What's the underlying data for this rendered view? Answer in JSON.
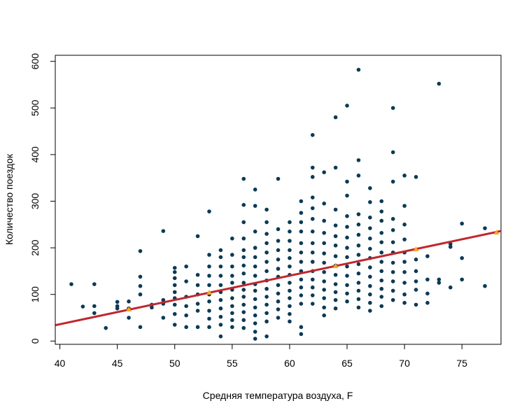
{
  "chart_data": {
    "type": "scatter",
    "title": "",
    "xlabel": "Средняя температура воздуха, F",
    "ylabel": "Количество поездок",
    "xlim": [
      39.6,
      78.4
    ],
    "ylim": [
      -7,
      613
    ],
    "xticks": [
      40,
      45,
      50,
      55,
      60,
      65,
      70,
      75
    ],
    "yticks": [
      0,
      100,
      200,
      300,
      400,
      500,
      600
    ],
    "grid": false,
    "legend": "none",
    "colors": {
      "points": "#0b3a55",
      "fit_line": "#c0272d",
      "markers": "#f5a623"
    },
    "series": [
      {
        "type": "scatter",
        "points": [
          [
            41,
            122
          ],
          [
            42,
            74
          ],
          [
            43,
            122
          ],
          [
            43,
            75
          ],
          [
            43,
            60
          ],
          [
            44,
            28
          ],
          [
            45,
            84
          ],
          [
            45,
            75
          ],
          [
            45,
            70
          ],
          [
            46,
            85
          ],
          [
            46,
            70
          ],
          [
            46,
            50
          ],
          [
            47,
            193
          ],
          [
            47,
            138
          ],
          [
            47,
            118
          ],
          [
            47,
            100
          ],
          [
            47,
            30
          ],
          [
            48,
            78
          ],
          [
            48,
            72
          ],
          [
            49,
            236
          ],
          [
            49,
            88
          ],
          [
            49,
            80
          ],
          [
            49,
            50
          ],
          [
            50,
            157
          ],
          [
            50,
            148
          ],
          [
            50,
            135
          ],
          [
            50,
            120
          ],
          [
            50,
            105
          ],
          [
            50,
            92
          ],
          [
            50,
            78
          ],
          [
            50,
            58
          ],
          [
            50,
            35
          ],
          [
            51,
            160
          ],
          [
            51,
            128
          ],
          [
            51,
            95
          ],
          [
            51,
            75
          ],
          [
            51,
            55
          ],
          [
            51,
            30
          ],
          [
            52,
            225
          ],
          [
            52,
            142
          ],
          [
            52,
            120
          ],
          [
            52,
            100
          ],
          [
            52,
            80
          ],
          [
            52,
            65
          ],
          [
            52,
            30
          ],
          [
            53,
            278
          ],
          [
            53,
            185
          ],
          [
            53,
            160
          ],
          [
            53,
            140
          ],
          [
            53,
            120
          ],
          [
            53,
            100
          ],
          [
            53,
            85
          ],
          [
            53,
            65
          ],
          [
            53,
            48
          ],
          [
            53,
            30
          ],
          [
            54,
            195
          ],
          [
            54,
            180
          ],
          [
            54,
            160
          ],
          [
            54,
            140
          ],
          [
            54,
            120
          ],
          [
            54,
            105
          ],
          [
            54,
            88
          ],
          [
            54,
            70
          ],
          [
            54,
            52
          ],
          [
            54,
            35
          ],
          [
            54,
            10
          ],
          [
            55,
            220
          ],
          [
            55,
            185
          ],
          [
            55,
            160
          ],
          [
            55,
            140
          ],
          [
            55,
            125
          ],
          [
            55,
            110
          ],
          [
            55,
            92
          ],
          [
            55,
            75
          ],
          [
            55,
            60
          ],
          [
            55,
            45
          ],
          [
            55,
            30
          ],
          [
            56,
            348
          ],
          [
            56,
            292
          ],
          [
            56,
            255
          ],
          [
            56,
            220
          ],
          [
            56,
            195
          ],
          [
            56,
            180
          ],
          [
            56,
            162
          ],
          [
            56,
            145
          ],
          [
            56,
            125
          ],
          [
            56,
            110
          ],
          [
            56,
            95
          ],
          [
            56,
            78
          ],
          [
            56,
            62
          ],
          [
            56,
            45
          ],
          [
            56,
            28
          ],
          [
            57,
            325
          ],
          [
            57,
            290
          ],
          [
            57,
            235
          ],
          [
            57,
            200
          ],
          [
            57,
            180
          ],
          [
            57,
            160
          ],
          [
            57,
            140
          ],
          [
            57,
            122
          ],
          [
            57,
            108
          ],
          [
            57,
            90
          ],
          [
            57,
            72
          ],
          [
            57,
            55
          ],
          [
            57,
            38
          ],
          [
            57,
            20
          ],
          [
            57,
            5
          ],
          [
            58,
            282
          ],
          [
            58,
            255
          ],
          [
            58,
            230
          ],
          [
            58,
            210
          ],
          [
            58,
            190
          ],
          [
            58,
            170
          ],
          [
            58,
            150
          ],
          [
            58,
            130
          ],
          [
            58,
            112
          ],
          [
            58,
            95
          ],
          [
            58,
            78
          ],
          [
            58,
            60
          ],
          [
            58,
            42
          ],
          [
            58,
            10
          ],
          [
            59,
            348
          ],
          [
            59,
            240
          ],
          [
            59,
            215
          ],
          [
            59,
            195
          ],
          [
            59,
            175
          ],
          [
            59,
            155
          ],
          [
            59,
            138
          ],
          [
            59,
            120
          ],
          [
            59,
            102
          ],
          [
            59,
            85
          ],
          [
            59,
            68
          ],
          [
            59,
            50
          ],
          [
            60,
            255
          ],
          [
            60,
            235
          ],
          [
            60,
            215
          ],
          [
            60,
            195
          ],
          [
            60,
            178
          ],
          [
            60,
            160
          ],
          [
            60,
            142
          ],
          [
            60,
            125
          ],
          [
            60,
            108
          ],
          [
            60,
            92
          ],
          [
            60,
            75
          ],
          [
            60,
            58
          ],
          [
            60,
            42
          ],
          [
            61,
            300
          ],
          [
            61,
            275
          ],
          [
            61,
            255
          ],
          [
            61,
            235
          ],
          [
            61,
            210
          ],
          [
            61,
            190
          ],
          [
            61,
            170
          ],
          [
            61,
            150
          ],
          [
            61,
            132
          ],
          [
            61,
            115
          ],
          [
            61,
            98
          ],
          [
            61,
            80
          ],
          [
            61,
            30
          ],
          [
            61,
            15
          ],
          [
            62,
            442
          ],
          [
            62,
            372
          ],
          [
            62,
            352
          ],
          [
            62,
            308
          ],
          [
            62,
            285
          ],
          [
            62,
            262
          ],
          [
            62,
            235
          ],
          [
            62,
            210
          ],
          [
            62,
            190
          ],
          [
            62,
            170
          ],
          [
            62,
            150
          ],
          [
            62,
            132
          ],
          [
            62,
            115
          ],
          [
            62,
            98
          ],
          [
            62,
            80
          ],
          [
            63,
            362
          ],
          [
            63,
            295
          ],
          [
            63,
            258
          ],
          [
            63,
            232
          ],
          [
            63,
            210
          ],
          [
            63,
            188
          ],
          [
            63,
            168
          ],
          [
            63,
            148
          ],
          [
            63,
            128
          ],
          [
            63,
            110
          ],
          [
            63,
            92
          ],
          [
            63,
            72
          ],
          [
            63,
            55
          ],
          [
            64,
            480
          ],
          [
            64,
            372
          ],
          [
            64,
            282
          ],
          [
            64,
            248
          ],
          [
            64,
            225
          ],
          [
            64,
            205
          ],
          [
            64,
            182
          ],
          [
            64,
            162
          ],
          [
            64,
            142
          ],
          [
            64,
            122
          ],
          [
            64,
            105
          ],
          [
            64,
            88
          ],
          [
            64,
            70
          ],
          [
            65,
            505
          ],
          [
            65,
            342
          ],
          [
            65,
            312
          ],
          [
            65,
            268
          ],
          [
            65,
            245
          ],
          [
            65,
            222
          ],
          [
            65,
            200
          ],
          [
            65,
            180
          ],
          [
            65,
            160
          ],
          [
            65,
            140
          ],
          [
            65,
            120
          ],
          [
            65,
            102
          ],
          [
            65,
            85
          ],
          [
            66,
            582
          ],
          [
            66,
            388
          ],
          [
            66,
            355
          ],
          [
            66,
            272
          ],
          [
            66,
            250
          ],
          [
            66,
            228
          ],
          [
            66,
            205
          ],
          [
            66,
            185
          ],
          [
            66,
            165
          ],
          [
            66,
            145
          ],
          [
            66,
            125
          ],
          [
            66,
            108
          ],
          [
            66,
            90
          ],
          [
            66,
            72
          ],
          [
            67,
            328
          ],
          [
            67,
            298
          ],
          [
            67,
            265
          ],
          [
            67,
            242
          ],
          [
            67,
            220
          ],
          [
            67,
            198
          ],
          [
            67,
            178
          ],
          [
            67,
            158
          ],
          [
            67,
            138
          ],
          [
            67,
            118
          ],
          [
            67,
            100
          ],
          [
            67,
            82
          ],
          [
            67,
            65
          ],
          [
            68,
            300
          ],
          [
            68,
            278
          ],
          [
            68,
            258
          ],
          [
            68,
            232
          ],
          [
            68,
            212
          ],
          [
            68,
            190
          ],
          [
            68,
            170
          ],
          [
            68,
            150
          ],
          [
            68,
            130
          ],
          [
            68,
            112
          ],
          [
            68,
            95
          ],
          [
            68,
            75
          ],
          [
            69,
            500
          ],
          [
            69,
            405
          ],
          [
            69,
            342
          ],
          [
            69,
            262
          ],
          [
            69,
            238
          ],
          [
            69,
            212
          ],
          [
            69,
            190
          ],
          [
            69,
            168
          ],
          [
            69,
            148
          ],
          [
            69,
            128
          ],
          [
            69,
            108
          ],
          [
            69,
            88
          ],
          [
            70,
            355
          ],
          [
            70,
            290
          ],
          [
            70,
            250
          ],
          [
            70,
            218
          ],
          [
            70,
            190
          ],
          [
            70,
            170
          ],
          [
            70,
            148
          ],
          [
            70,
            125
          ],
          [
            70,
            100
          ],
          [
            70,
            82
          ],
          [
            71,
            352
          ],
          [
            71,
            175
          ],
          [
            71,
            150
          ],
          [
            71,
            128
          ],
          [
            71,
            110
          ],
          [
            71,
            78
          ],
          [
            72,
            182
          ],
          [
            72,
            132
          ],
          [
            72,
            102
          ],
          [
            72,
            82
          ],
          [
            73,
            552
          ],
          [
            73,
            132
          ],
          [
            73,
            125
          ],
          [
            74,
            208
          ],
          [
            74,
            202
          ],
          [
            74,
            115
          ],
          [
            75,
            252
          ],
          [
            75,
            178
          ],
          [
            75,
            132
          ],
          [
            77,
            242
          ],
          [
            77,
            118
          ]
        ]
      },
      {
        "type": "line",
        "x": [
          39.6,
          78.4
        ],
        "y": [
          34,
          236
        ]
      },
      {
        "type": "marker",
        "x": [
          46,
          53,
          64,
          71,
          78
        ],
        "y": [
          68,
          104,
          161,
          197,
          233
        ]
      }
    ]
  }
}
